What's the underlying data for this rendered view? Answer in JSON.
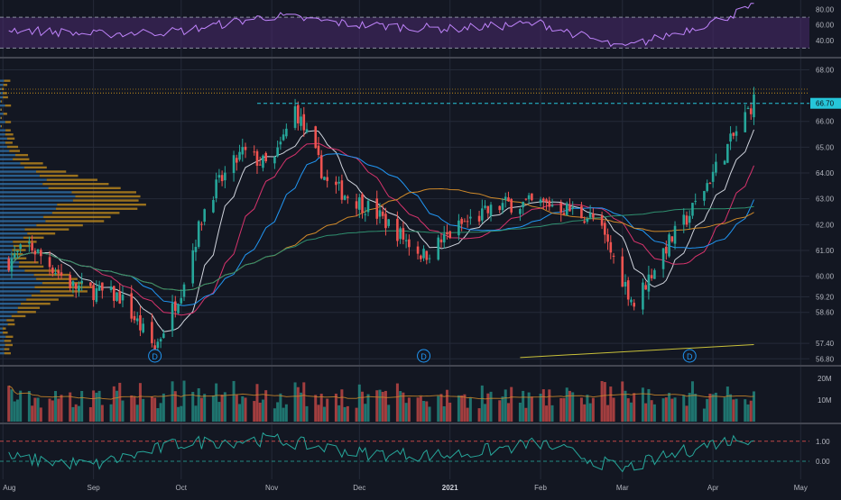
{
  "colors": {
    "background": "#131722",
    "grid": "#242a38",
    "up": "#26a69a",
    "down": "#ef5350",
    "axis_text": "#b2b5be",
    "rsi_line": "#c084fc",
    "rsi_band": "#4b2a6e",
    "volume_profile_up": "#2f6fa8",
    "volume_profile_down": "#c8901c",
    "sma_white": "#cfd3dc",
    "sma_pink": "#d6336c",
    "sma_blue": "#2196f3",
    "sma_orange": "#d08a2a",
    "sma_green": "#2f8f6f",
    "sma_yellow": "#c9c13a",
    "price_tag": "#26c6da",
    "momentum_line": "#26a69a"
  },
  "chart_data": [
    {
      "type": "line",
      "name": "rsi-panel",
      "ylim": [
        20,
        90
      ],
      "y_ticks": [
        "80.00",
        "60.00",
        "40.00"
      ],
      "levels": [
        70,
        30
      ],
      "x": [
        "2020-08",
        "2020-09",
        "2020-10",
        "2020-11",
        "2020-12",
        "2021-01",
        "2021-02",
        "2021-03",
        "2021-04",
        "2021-04-15"
      ],
      "values": [
        55,
        48,
        52,
        72,
        60,
        55,
        62,
        30,
        64,
        84
      ]
    },
    {
      "type": "candlestick",
      "name": "price-panel",
      "ylim": [
        56.6,
        68.4
      ],
      "y_ticks": [
        "68.00",
        "66.00",
        "65.00",
        "64.00",
        "63.00",
        "62.00",
        "61.00",
        "60.00",
        "59.20",
        "58.60",
        "57.40",
        "56.80"
      ],
      "last_price_label": "66.70",
      "last_price": 66.7,
      "dividend_markers": [
        {
          "label": "D",
          "date": "2020-09-22"
        },
        {
          "label": "D",
          "date": "2020-12-23"
        },
        {
          "label": "D",
          "date": "2021-03-24"
        }
      ],
      "anchors": [
        {
          "date": "2020-08-01",
          "close": 60.4
        },
        {
          "date": "2020-08-10",
          "close": 61.2
        },
        {
          "date": "2020-08-25",
          "close": 59.6
        },
        {
          "date": "2020-09-10",
          "close": 59.2
        },
        {
          "date": "2020-09-22",
          "close": 57.2
        },
        {
          "date": "2020-10-01",
          "close": 59.5
        },
        {
          "date": "2020-10-10",
          "close": 63.0
        },
        {
          "date": "2020-10-22",
          "close": 64.8
        },
        {
          "date": "2020-11-01",
          "close": 64.2
        },
        {
          "date": "2020-11-09",
          "close": 66.5
        },
        {
          "date": "2020-11-20",
          "close": 63.6
        },
        {
          "date": "2020-12-05",
          "close": 62.6
        },
        {
          "date": "2020-12-23",
          "close": 60.8
        },
        {
          "date": "2021-01-05",
          "close": 62.0
        },
        {
          "date": "2021-01-20",
          "close": 62.8
        },
        {
          "date": "2021-02-05",
          "close": 62.8
        },
        {
          "date": "2021-02-20",
          "close": 62.2
        },
        {
          "date": "2021-03-05",
          "close": 58.9
        },
        {
          "date": "2021-03-15",
          "close": 61.0
        },
        {
          "date": "2021-03-24",
          "close": 62.4
        },
        {
          "date": "2021-04-05",
          "close": 64.8
        },
        {
          "date": "2021-04-15",
          "close": 66.8
        }
      ]
    },
    {
      "type": "bar",
      "name": "volume-panel",
      "y_ticks": [
        "20M",
        "10M"
      ],
      "ylim": [
        0,
        25000000
      ]
    },
    {
      "type": "line",
      "name": "momentum-panel",
      "ylim": [
        -0.9,
        1.8
      ],
      "y_ticks": [
        "1.00",
        "0.00"
      ],
      "levels": [
        1.0,
        0.0
      ],
      "x": [
        "2020-08",
        "2020-09",
        "2020-10",
        "2020-11",
        "2020-12",
        "2021-01",
        "2021-02",
        "2021-03",
        "2021-04",
        "2021-04-15"
      ],
      "values": [
        0.2,
        -0.2,
        0.9,
        1.1,
        0.4,
        0.3,
        0.9,
        -0.4,
        0.9,
        1.2
      ]
    }
  ],
  "x_axis": {
    "ticks": [
      {
        "label": "Aug",
        "date": "2020-08-01"
      },
      {
        "label": "Sep",
        "date": "2020-09-01"
      },
      {
        "label": "Oct",
        "date": "2020-10-01"
      },
      {
        "label": "Nov",
        "date": "2020-11-01"
      },
      {
        "label": "Dec",
        "date": "2020-12-01"
      },
      {
        "label": "2021",
        "date": "2021-01-01"
      },
      {
        "label": "Feb",
        "date": "2021-02-01"
      },
      {
        "label": "Mar",
        "date": "2021-03-01"
      },
      {
        "label": "Apr",
        "date": "2021-04-01"
      },
      {
        "label": "May",
        "date": "2021-05-01"
      }
    ]
  }
}
